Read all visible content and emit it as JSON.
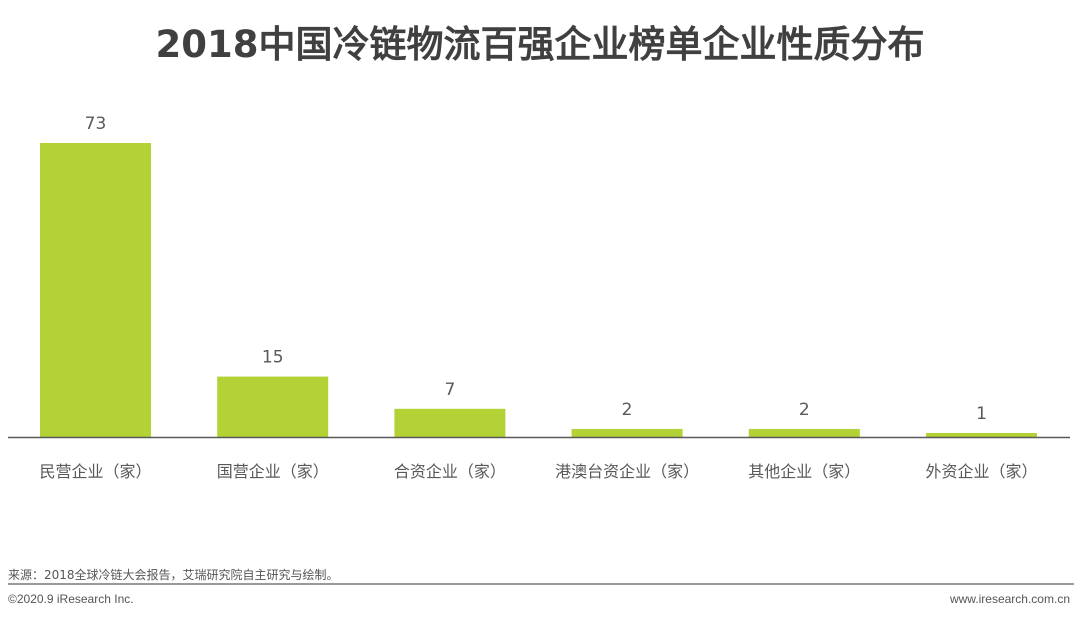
{
  "chart_data": {
    "type": "bar",
    "title": "2018中国冷链物流百强企业榜单企业性质分布",
    "categories": [
      "民营企业（家）",
      "国营企业（家）",
      "合资企业（家）",
      "港澳台资企业（家）",
      "其他企业（家）",
      "外资企业（家）"
    ],
    "values": [
      73,
      15,
      7,
      2,
      2,
      1
    ],
    "data_labels": [
      "73",
      "15",
      "7",
      "2",
      "2",
      "1"
    ],
    "xlabel": "",
    "ylabel": "",
    "ylim": [
      0,
      73
    ],
    "grid": false,
    "bar_color": "#b2d235",
    "axis_color": "#595959"
  },
  "footer": {
    "source": "来源：2018全球冷链大会报告，艾瑞研究院自主研究与绘制。",
    "copyright": "©2020.9 iResearch Inc.",
    "website": "www.iresearch.com.cn"
  }
}
